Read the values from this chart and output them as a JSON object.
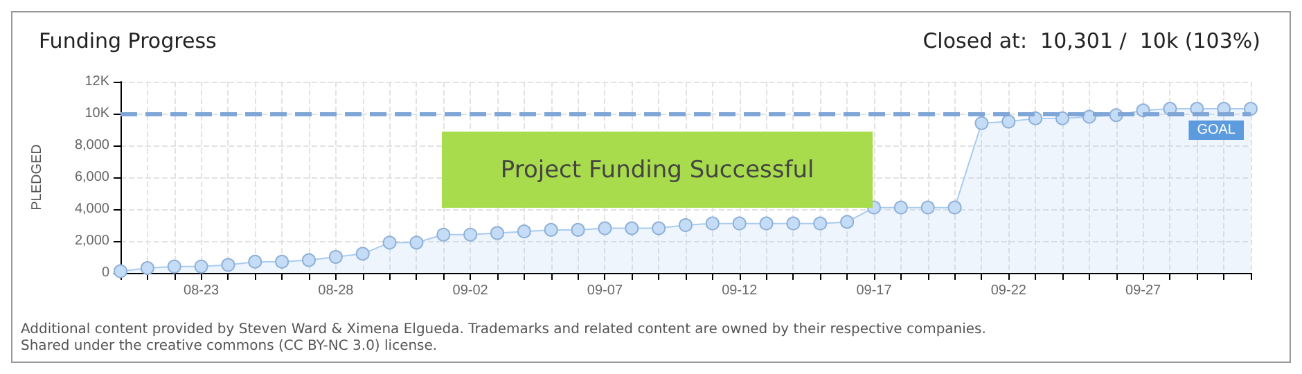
{
  "chart_data": {
    "type": "area",
    "title": "Funding Progress",
    "subtitle": "Closed at:  10,301 /  10k (103%)",
    "ylabel": "PLEDGED",
    "annotations": [
      "Project Funding Successful",
      "Additional content provided by Steven Ward & Ximena Elgueda. Trademarks and related content are owned by their respective companies.",
      "Shared under the creative commons (CC BY-NC 3.0) license."
    ],
    "categories": [
      null,
      null,
      null,
      "08-23",
      null,
      null,
      null,
      null,
      "08-28",
      null,
      null,
      null,
      null,
      "09-02",
      null,
      null,
      null,
      null,
      "09-07",
      null,
      null,
      null,
      null,
      "09-12",
      null,
      null,
      null,
      null,
      "09-17",
      null,
      null,
      null,
      null,
      "09-22",
      null,
      null,
      null,
      null,
      "09-27",
      null,
      null,
      null,
      null
    ],
    "series": [
      {
        "color": "#a8cbf0",
        "values": [
          100,
          300,
          400,
          400,
          500,
          700,
          700,
          800,
          1000,
          1200,
          1900,
          1900,
          2400,
          2400,
          2500,
          2600,
          2700,
          2700,
          2800,
          2800,
          2800,
          3000,
          3100,
          3100,
          3100,
          3100,
          3100,
          3200,
          4100,
          4100,
          4100,
          4100,
          9400,
          9500,
          9700,
          9700,
          9800,
          9900,
          10200,
          10300,
          10300,
          10300,
          10300
        ]
      }
    ],
    "ylim": [
      0,
      12000
    ],
    "yticks": [
      0,
      {
        "value": 2000,
        "label": "2,000"
      },
      {
        "value": 4000,
        "label": "4,000"
      },
      {
        "value": 6000,
        "label": "6,000"
      },
      {
        "value": 8000,
        "label": "8,000"
      },
      {
        "value": 10000,
        "label": "10K"
      },
      {
        "value": 12000,
        "label": "12K"
      }
    ],
    "ref_lines": [
      {
        "axis": "y",
        "value": 10000,
        "label": "GOAL",
        "color": "#7fa6d6",
        "line_style": "dashed"
      }
    ],
    "grid": true,
    "marker": "circle",
    "line_style": "solid"
  }
}
